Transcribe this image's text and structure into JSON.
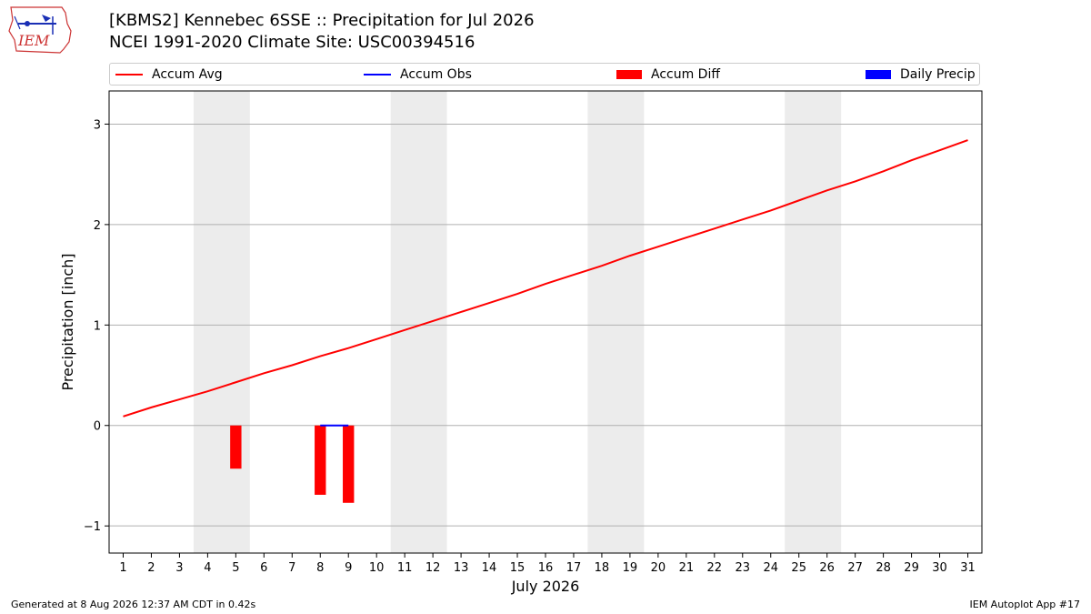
{
  "header": {
    "title_line1": "[KBMS2] Kennebec 6SSE :: Precipitation for Jul 2026",
    "title_line2": "NCEI 1991-2020 Climate Site: USC00394516"
  },
  "logo": {
    "text": "IEM",
    "icon": "iem-logo-icon"
  },
  "legend": {
    "items": [
      {
        "label": "Accum Avg",
        "kind": "line",
        "color": "#ff0000"
      },
      {
        "label": "Accum Obs",
        "kind": "line",
        "color": "#0000ff"
      },
      {
        "label": "Accum Diff",
        "kind": "box",
        "color": "#ff0000"
      },
      {
        "label": "Daily Precip",
        "kind": "box",
        "color": "#0000ff"
      }
    ]
  },
  "footer": {
    "left": "Generated at 8 Aug 2026 12:37 AM CDT in 0.42s",
    "right": "IEM Autoplot App #17"
  },
  "chart_data": {
    "type": "line",
    "xlabel": "July 2026",
    "ylabel": "Precipitation [inch]",
    "xlim": [
      0.5,
      31.5
    ],
    "ylim": [
      -1.27,
      3.33
    ],
    "x_ticks": [
      1,
      2,
      3,
      4,
      5,
      6,
      7,
      8,
      9,
      10,
      11,
      12,
      13,
      14,
      15,
      16,
      17,
      18,
      19,
      20,
      21,
      22,
      23,
      24,
      25,
      26,
      27,
      28,
      29,
      30,
      31
    ],
    "y_ticks": [
      -1,
      0,
      1,
      2,
      3
    ],
    "y_tick_labels": [
      "−1",
      "0",
      "1",
      "2",
      "3"
    ],
    "grid": "horizontal",
    "weekend_shading": [
      [
        4,
        5
      ],
      [
        11,
        12
      ],
      [
        18,
        19
      ],
      [
        25,
        26
      ]
    ],
    "shading_color": "#ececec",
    "series": [
      {
        "name": "Accum Avg",
        "kind": "line",
        "color": "#ff0000",
        "x": [
          1,
          2,
          3,
          4,
          5,
          6,
          7,
          8,
          9,
          10,
          11,
          12,
          13,
          14,
          15,
          16,
          17,
          18,
          19,
          20,
          21,
          22,
          23,
          24,
          25,
          26,
          27,
          28,
          29,
          30,
          31
        ],
        "values": [
          0.09,
          0.18,
          0.26,
          0.34,
          0.43,
          0.52,
          0.6,
          0.69,
          0.77,
          0.86,
          0.95,
          1.04,
          1.13,
          1.22,
          1.31,
          1.41,
          1.5,
          1.59,
          1.69,
          1.78,
          1.87,
          1.96,
          2.05,
          2.14,
          2.24,
          2.34,
          2.43,
          2.53,
          2.64,
          2.74,
          2.84
        ]
      },
      {
        "name": "Accum Obs",
        "kind": "line",
        "color": "#0000ff",
        "x": [
          8,
          9
        ],
        "values": [
          0.0,
          0.0
        ]
      },
      {
        "name": "Accum Diff",
        "kind": "bar",
        "color": "#ff0000",
        "x": [
          5,
          8,
          9
        ],
        "values": [
          -0.43,
          -0.69,
          -0.77
        ]
      },
      {
        "name": "Daily Precip",
        "kind": "bar",
        "color": "#0000ff",
        "x": [],
        "values": []
      }
    ]
  }
}
